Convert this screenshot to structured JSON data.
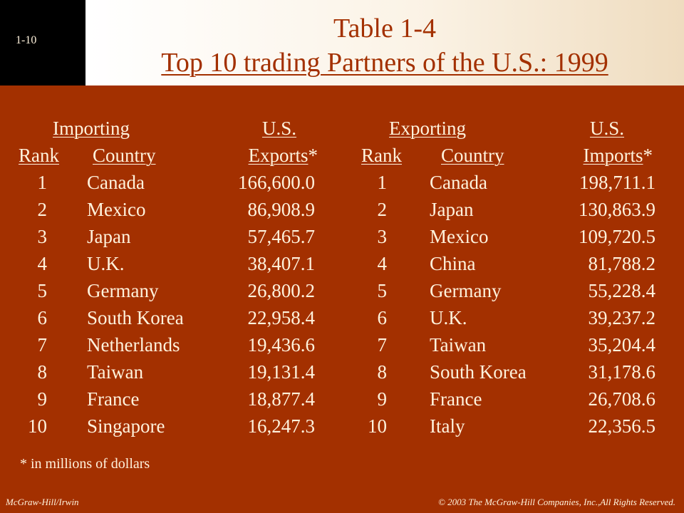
{
  "slide_number": "1-10",
  "title_line1": "Table 1-4",
  "title_line2": "Top 10 trading Partners of the U.S.: 1999",
  "left_table": {
    "header_row1": [
      "Importing",
      "U.S."
    ],
    "header_row2": [
      "Rank",
      "Country",
      "Exports",
      "*"
    ],
    "rows": [
      {
        "rank": "1",
        "country": "Canada",
        "value": "166,600.0"
      },
      {
        "rank": "2",
        "country": "Mexico",
        "value": "86,908.9"
      },
      {
        "rank": "3",
        "country": "Japan",
        "value": "57,465.7"
      },
      {
        "rank": "4",
        "country": "U.K.",
        "value": "38,407.1"
      },
      {
        "rank": "5",
        "country": "Germany",
        "value": "26,800.2"
      },
      {
        "rank": "6",
        "country": "South Korea",
        "value": "22,958.4"
      },
      {
        "rank": "7",
        "country": "Netherlands",
        "value": "19,436.6"
      },
      {
        "rank": "8",
        "country": "Taiwan",
        "value": "19,131.4"
      },
      {
        "rank": "9",
        "country": "France",
        "value": "18,877.4"
      },
      {
        "rank": "10",
        "country": "Singapore",
        "value": "16,247.3"
      }
    ]
  },
  "right_table": {
    "header_row1": [
      "Exporting",
      "U.S."
    ],
    "header_row2": [
      "Rank",
      "Country",
      "Imports",
      "*"
    ],
    "rows": [
      {
        "rank": "1",
        "country": "Canada",
        "value": "198,711.1"
      },
      {
        "rank": "2",
        "country": "Japan",
        "value": "130,863.9"
      },
      {
        "rank": "3",
        "country": "Mexico",
        "value": "109,720.5"
      },
      {
        "rank": "4",
        "country": "China",
        "value": "81,788.2"
      },
      {
        "rank": "5",
        "country": "Germany",
        "value": "55,228.4"
      },
      {
        "rank": "6",
        "country": "U.K.",
        "value": "39,237.2"
      },
      {
        "rank": "7",
        "country": "Taiwan",
        "value": "35,204.4"
      },
      {
        "rank": "8",
        "country": "South Korea",
        "value": "31,178.6"
      },
      {
        "rank": "9",
        "country": "France",
        "value": "26,708.6"
      },
      {
        "rank": "10",
        "country": "Italy",
        "value": "22,356.5"
      }
    ]
  },
  "footnote": "* in millions of dollars",
  "footer_left": "McGraw-Hill/Irwin",
  "footer_right": "© 2003 The McGraw-Hill Companies, Inc.,All Rights Reserved."
}
